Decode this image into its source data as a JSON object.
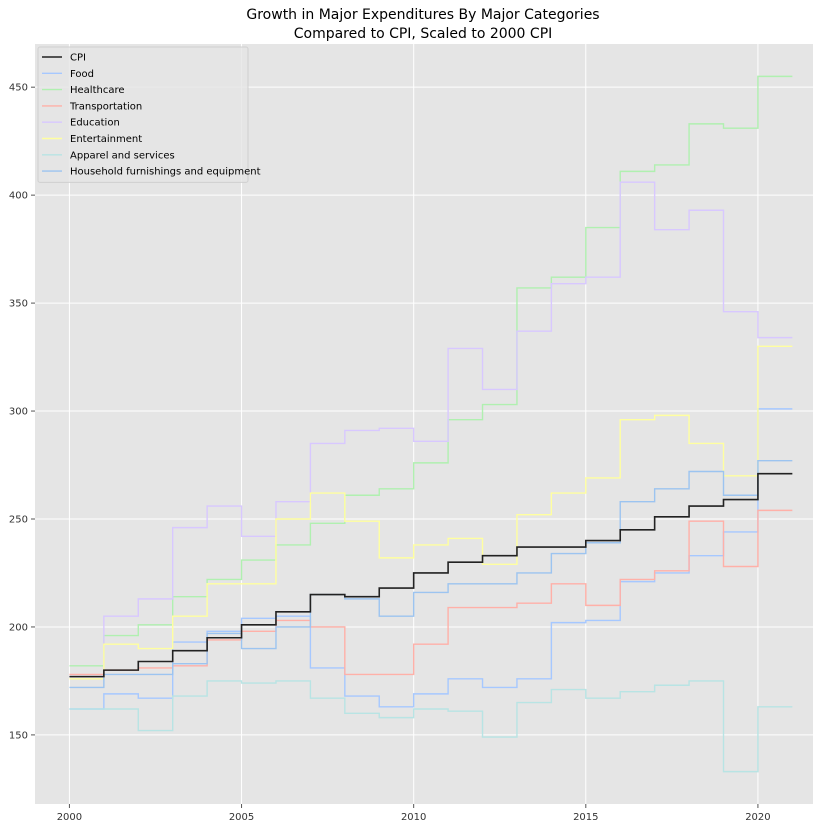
{
  "chart_data": {
    "type": "line",
    "step": "post",
    "title": "Growth in Major Expenditures By Major Categories",
    "subtitle": "Compared to CPI, Scaled to 2000 CPI",
    "xlabel": "",
    "ylabel": "",
    "xlim": [
      1999,
      2021.6
    ],
    "ylim": [
      118,
      470
    ],
    "x_ticks": [
      2000,
      2005,
      2010,
      2015,
      2020
    ],
    "y_ticks": [
      150,
      200,
      250,
      300,
      350,
      400,
      450
    ],
    "grid": true,
    "legend_position": "upper-left",
    "x": [
      2000,
      2001,
      2002,
      2003,
      2004,
      2005,
      2006,
      2007,
      2008,
      2009,
      2010,
      2011,
      2012,
      2013,
      2014,
      2015,
      2016,
      2017,
      2018,
      2019,
      2020,
      2021
    ],
    "series": [
      {
        "name": "CPI",
        "color": "#222222",
        "values": [
          177,
          180,
          184,
          189,
          195,
          201,
          207,
          215,
          214,
          218,
          225,
          230,
          233,
          237,
          237,
          240,
          245,
          251,
          256,
          259,
          271,
          271
        ]
      },
      {
        "name": "Food",
        "color": "#a6c8ff",
        "values": [
          162,
          169,
          167,
          193,
          198,
          204,
          205,
          181,
          168,
          163,
          169,
          176,
          172,
          176,
          202,
          203,
          221,
          225,
          233,
          244,
          301,
          301
        ]
      },
      {
        "name": "Healthcare",
        "color": "#b0f0b0",
        "values": [
          182,
          196,
          201,
          214,
          222,
          231,
          238,
          248,
          261,
          264,
          276,
          296,
          303,
          357,
          362,
          385,
          411,
          414,
          433,
          431,
          455,
          455
        ]
      },
      {
        "name": "Transportation",
        "color": "#ffb0a8",
        "values": [
          178,
          180,
          181,
          182,
          194,
          198,
          203,
          200,
          178,
          178,
          192,
          209,
          209,
          211,
          220,
          210,
          222,
          226,
          249,
          228,
          254,
          254
        ]
      },
      {
        "name": "Education",
        "color": "#d8c8ff",
        "values": [
          177,
          205,
          213,
          246,
          256,
          242,
          258,
          285,
          291,
          292,
          286,
          329,
          310,
          337,
          359,
          362,
          406,
          384,
          393,
          346,
          334,
          334
        ]
      },
      {
        "name": "Entertainment",
        "color": "#ffffa0",
        "values": [
          176,
          192,
          190,
          205,
          220,
          220,
          250,
          262,
          249,
          232,
          238,
          241,
          229,
          252,
          262,
          269,
          296,
          298,
          285,
          270,
          330,
          330
        ]
      },
      {
        "name": "Apparel and services",
        "color": "#b8e4e4",
        "values": [
          162,
          162,
          152,
          168,
          175,
          174,
          175,
          167,
          160,
          158,
          162,
          161,
          149,
          165,
          171,
          167,
          170,
          173,
          175,
          133,
          163,
          163
        ]
      },
      {
        "name": "Household furnishings and equipment",
        "color": "#9cc4f0",
        "values": [
          172,
          178,
          178,
          183,
          197,
          190,
          200,
          215,
          213,
          205,
          216,
          220,
          220,
          225,
          234,
          239,
          258,
          264,
          272,
          261,
          277,
          277
        ]
      }
    ]
  }
}
